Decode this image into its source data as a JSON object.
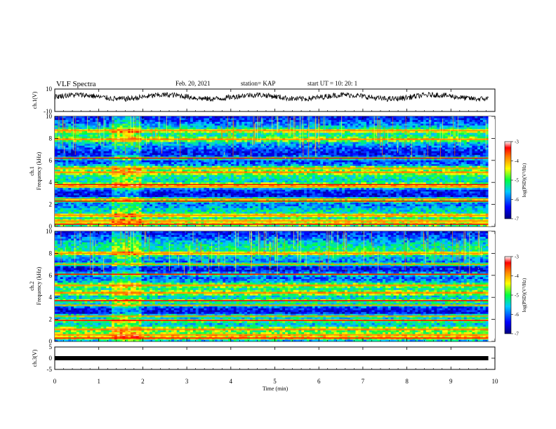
{
  "header": {
    "title": "VLF Spectra",
    "date": "Feb. 20, 2021",
    "station": "station= KAP",
    "start": "start  UT =   10: 20: 1"
  },
  "chart_data": [
    {
      "name": "ch1-voltage",
      "type": "line",
      "ylabel": "ch.1(V)",
      "ylim": [
        -10,
        10
      ],
      "yticks": [
        "10",
        "-10"
      ],
      "xlim": [
        0,
        9.85
      ],
      "baseline": 3,
      "amplitude": 3
    },
    {
      "name": "ch1-spectrogram",
      "type": "heatmap",
      "ylabel_line1": "ch.1",
      "ylabel_line2": "Frequency (kHz)",
      "ylim": [
        0,
        10
      ],
      "yticks": [
        "0",
        "2",
        "4",
        "6",
        "8",
        "10"
      ],
      "xlim": [
        0,
        9.85
      ],
      "colorbar": {
        "label": "log(PSD)(V²/Hz)",
        "ticks": [
          "-3",
          "-4",
          "-5",
          "-6",
          "-7"
        ],
        "range": [
          -7,
          -3
        ]
      },
      "bands_khz": [
        0.2,
        0.5,
        1.0,
        2.3,
        2.5,
        3.6,
        3.8,
        4.9,
        5.3,
        6.2,
        7.9,
        8.7
      ],
      "interference_segment_min": [
        1.3,
        1.95
      ]
    },
    {
      "name": "ch2-spectrogram",
      "type": "heatmap",
      "ylabel_line1": "ch.2",
      "ylabel_line2": "Frequency (kHz)",
      "ylim": [
        0,
        10
      ],
      "yticks": [
        "0",
        "2",
        "4",
        "6",
        "8",
        "10"
      ],
      "xlim": [
        0,
        9.85
      ],
      "colorbar": {
        "label": "log(PSD)(V²/Hz)",
        "ticks": [
          "-3",
          "-4",
          "-5",
          "-6",
          "-7"
        ],
        "range": [
          -7,
          -3
        ]
      },
      "bands_khz": [
        0.3,
        0.6,
        1.1,
        1.9,
        2.3,
        3.3,
        3.7,
        4.4,
        5.1,
        6.1,
        7.0,
        8.0
      ],
      "interference_segment_min": [
        1.3,
        1.95
      ]
    },
    {
      "name": "ch3-voltage",
      "type": "line",
      "ylabel": "ch.3(V)",
      "ylim": [
        -5,
        5
      ],
      "yticks": [
        "5",
        "0",
        "-5"
      ],
      "xlim": [
        0,
        9.85
      ],
      "baseline": 0,
      "note": "thick constant trace"
    }
  ],
  "xaxis": {
    "label": "Time  (min)",
    "ticks": [
      "0",
      "1",
      "2",
      "3",
      "4",
      "5",
      "6",
      "7",
      "8",
      "9",
      "10"
    ],
    "range": [
      0,
      10
    ]
  }
}
